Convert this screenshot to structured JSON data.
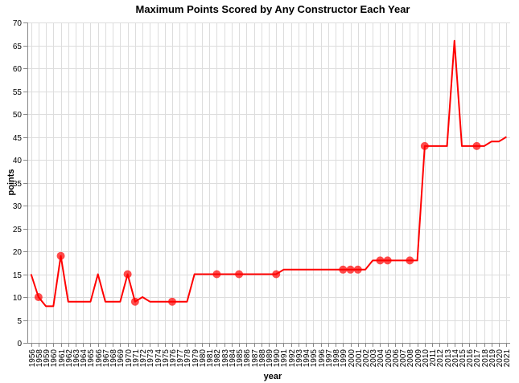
{
  "chart_data": {
    "type": "line",
    "title": "Maximum Points Scored by Any Constructor Each Year",
    "xlabel": "year",
    "ylabel": "points",
    "ylim": [
      0,
      70
    ],
    "yticks": [
      0,
      5,
      10,
      15,
      20,
      25,
      30,
      35,
      40,
      45,
      50,
      55,
      60,
      65,
      70
    ],
    "grid": true,
    "line_color": "#ff0000",
    "point_color": "#ff0000",
    "x": [
      "1956",
      "1958",
      "1959",
      "1960",
      "1961",
      "1962",
      "1963",
      "1964",
      "1965",
      "1966",
      "1967",
      "1968",
      "1969",
      "1970",
      "1971",
      "1972",
      "1973",
      "1974",
      "1975",
      "1976",
      "1977",
      "1978",
      "1979",
      "1980",
      "1981",
      "1982",
      "1983",
      "1984",
      "1985",
      "1986",
      "1987",
      "1988",
      "1989",
      "1990",
      "1991",
      "1992",
      "1993",
      "1994",
      "1995",
      "1996",
      "1997",
      "1998",
      "1999",
      "2000",
      "2001",
      "2002",
      "2003",
      "2004",
      "2005",
      "2006",
      "2007",
      "2008",
      "2009",
      "2010",
      "2011",
      "2012",
      "2013",
      "2014",
      "2015",
      "2016",
      "2017",
      "2018",
      "2019",
      "2020",
      "2021"
    ],
    "values": [
      15,
      10,
      8,
      8,
      19,
      9,
      9,
      9,
      9,
      15,
      9,
      9,
      9,
      15,
      9,
      10,
      9,
      9,
      9,
      9,
      9,
      9,
      15,
      15,
      15,
      15,
      15,
      15,
      15,
      15,
      15,
      15,
      15,
      15,
      16,
      16,
      16,
      16,
      16,
      16,
      16,
      16,
      16,
      16,
      16,
      16,
      18,
      18,
      18,
      18,
      18,
      18,
      18,
      43,
      43,
      43,
      43,
      66,
      43,
      43,
      43,
      43,
      44,
      44,
      45
    ],
    "points": [
      {
        "x": "1958",
        "y": 10
      },
      {
        "x": "1961",
        "y": 19
      },
      {
        "x": "1970",
        "y": 15
      },
      {
        "x": "1971",
        "y": 9
      },
      {
        "x": "1976",
        "y": 9
      },
      {
        "x": "1982",
        "y": 15
      },
      {
        "x": "1985",
        "y": 15
      },
      {
        "x": "1990",
        "y": 15
      },
      {
        "x": "1999",
        "y": 16
      },
      {
        "x": "2000",
        "y": 16
      },
      {
        "x": "2001",
        "y": 16
      },
      {
        "x": "2004",
        "y": 18
      },
      {
        "x": "2005",
        "y": 18
      },
      {
        "x": "2008",
        "y": 18
      },
      {
        "x": "2010",
        "y": 43
      },
      {
        "x": "2017",
        "y": 43
      }
    ]
  }
}
